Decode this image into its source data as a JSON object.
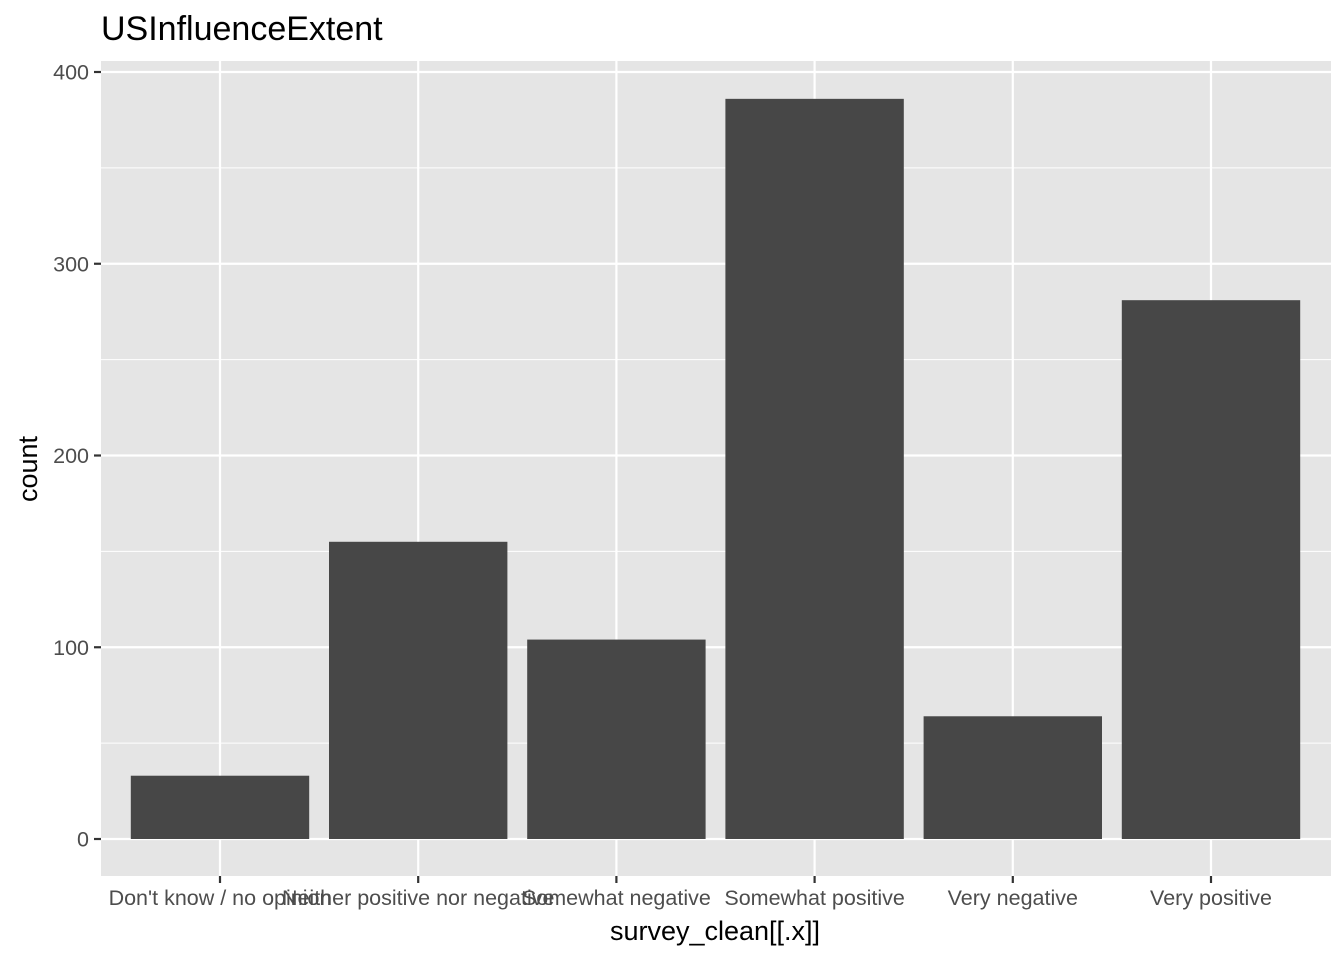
{
  "chart_data": {
    "type": "bar",
    "title": "USInfluenceExtent",
    "xlabel": "survey_clean[[.x]]",
    "ylabel": "count",
    "categories": [
      "Don't know / no opinion",
      "Neither positive nor negative",
      "Somewhat negative",
      "Somewhat positive",
      "Very negative",
      "Very positive"
    ],
    "values": [
      33,
      155,
      104,
      386,
      64,
      281
    ],
    "ylim": [
      -18.5,
      405
    ],
    "yticks": [
      0,
      100,
      200,
      300,
      400
    ],
    "yminor": [
      50,
      150,
      250,
      350
    ],
    "grid": true,
    "legend": "none",
    "colors": {
      "bar": "#474747",
      "panel": "#e5e5e5",
      "grid": "#ffffff",
      "tick": "#333333",
      "tick_label": "#4d4d4d",
      "text": "#000000",
      "background": "#ffffff"
    }
  }
}
